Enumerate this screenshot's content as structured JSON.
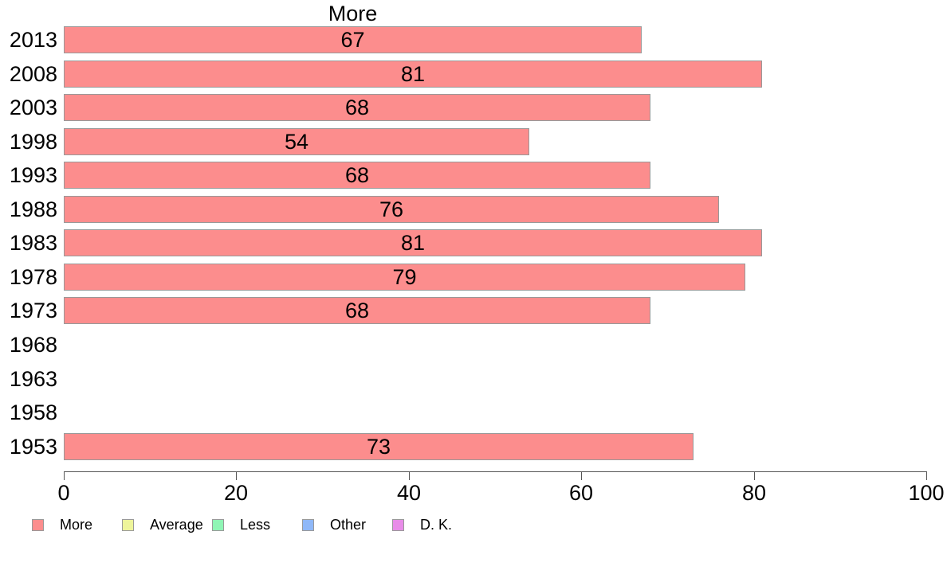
{
  "chart_data": {
    "type": "bar",
    "orientation": "horizontal",
    "title": "More",
    "categories": [
      "2013",
      "2008",
      "2003",
      "1998",
      "1993",
      "1988",
      "1983",
      "1978",
      "1973",
      "1968",
      "1963",
      "1958",
      "1953"
    ],
    "series": [
      {
        "name": "More",
        "color": "#FC8D8D",
        "values": [
          67,
          81,
          68,
          54,
          68,
          76,
          81,
          79,
          68,
          null,
          null,
          null,
          73
        ]
      }
    ],
    "xlabel": "",
    "ylabel": "",
    "xlim": [
      0,
      100
    ],
    "x_ticks": [
      0,
      20,
      40,
      60,
      80,
      100
    ],
    "grid": false,
    "value_labels_inside_bars": true,
    "legend_position": "bottom-left",
    "legend": [
      {
        "label": "More",
        "color": "#FC8D8D"
      },
      {
        "label": "Average",
        "color": "#EEF59B"
      },
      {
        "label": "Less",
        "color": "#8FF5B5"
      },
      {
        "label": "Other",
        "color": "#8FB8F8"
      },
      {
        "label": "D. K.",
        "color": "#E88CE8"
      }
    ]
  },
  "colors": {
    "bar_fill": "#FC8D8D",
    "bar_border": "#999999",
    "axis_line": "#555555",
    "text": "#000000",
    "background": "#FFFFFF"
  }
}
